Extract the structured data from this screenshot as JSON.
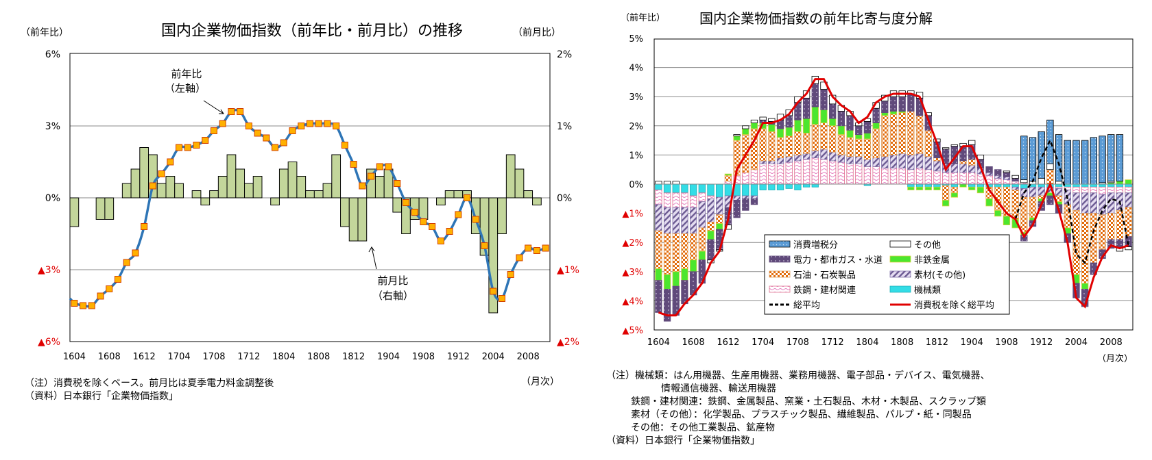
{
  "chart_data": [
    {
      "type": "bar+line",
      "title": "国内企業物価指数（前年比・前月比）の推移",
      "ylabel_left": "（前年比）",
      "ylabel_right": "（前月比）",
      "xlabel": "（月次）",
      "y_left_ticks": [
        "6%",
        "3%",
        "0%",
        "▲3%",
        "▲6%"
      ],
      "y_right_ticks": [
        "2%",
        "1%",
        "0%",
        "▲1%",
        "▲2%"
      ],
      "ylim_left": [
        -6,
        6
      ],
      "ylim_right": [
        -2,
        2
      ],
      "grid": true,
      "x_ticks": [
        "1604",
        "1608",
        "1612",
        "1704",
        "1708",
        "1712",
        "1804",
        "1808",
        "1812",
        "1904",
        "1908",
        "1912",
        "2004",
        "2008"
      ],
      "categories": [
        "1604",
        "1605",
        "1606",
        "1607",
        "1608",
        "1609",
        "1610",
        "1611",
        "1612",
        "1701",
        "1702",
        "1703",
        "1704",
        "1705",
        "1706",
        "1707",
        "1708",
        "1709",
        "1710",
        "1711",
        "1712",
        "1801",
        "1802",
        "1803",
        "1804",
        "1805",
        "1806",
        "1807",
        "1808",
        "1809",
        "1810",
        "1811",
        "1812",
        "1901",
        "1902",
        "1903",
        "1904",
        "1905",
        "1906",
        "1907",
        "1908",
        "1909",
        "1910",
        "1911",
        "1912",
        "2001",
        "2002",
        "2003",
        "2004",
        "2005",
        "2006",
        "2007",
        "2008",
        "2009",
        "2010"
      ],
      "series": [
        {
          "name": "前年比（左軸）",
          "type": "line",
          "axis": "left",
          "color": "#2e75b6",
          "marker_color": "#ffb000",
          "values": [
            -4.4,
            -4.5,
            -4.5,
            -4.1,
            -3.8,
            -3.4,
            -2.7,
            -2.3,
            -1.2,
            0.5,
            1.0,
            1.5,
            2.1,
            2.1,
            2.2,
            2.4,
            2.8,
            3.1,
            3.6,
            3.6,
            3.0,
            2.7,
            2.5,
            2.1,
            2.3,
            2.8,
            3.0,
            3.1,
            3.1,
            3.1,
            3.0,
            2.2,
            1.4,
            0.5,
            0.9,
            1.3,
            1.3,
            0.6,
            -0.2,
            -0.6,
            -1.0,
            -1.2,
            -1.8,
            -1.4,
            -0.7,
            0.0,
            -0.9,
            -2.0,
            -3.9,
            -4.2,
            -3.2,
            -2.5,
            -2.1,
            -2.2,
            -2.1
          ]
        },
        {
          "name": "前月比（右軸）",
          "type": "bar",
          "axis": "right",
          "color": "#c3d69b",
          "values": [
            -0.4,
            0,
            0,
            -0.3,
            -0.3,
            0,
            0.2,
            0.4,
            0.7,
            0.6,
            0.2,
            0.3,
            0.2,
            0,
            0.1,
            -0.1,
            0.1,
            0.3,
            0.6,
            0.4,
            0.2,
            0.3,
            0,
            -0.1,
            0.4,
            0.5,
            0.3,
            0.1,
            0.1,
            0.2,
            0.6,
            -0.4,
            -0.6,
            -0.6,
            0.4,
            0.3,
            0.4,
            -0.2,
            -0.5,
            -0.3,
            -0.3,
            0,
            -0.1,
            0.1,
            0.1,
            0.1,
            -0.5,
            -0.8,
            -1.6,
            -0.5,
            0.6,
            0.4,
            0.1,
            -0.1,
            0
          ]
        }
      ],
      "annotations": [
        {
          "line1": "前年比",
          "line2": "（左軸）"
        },
        {
          "line1": "前月比",
          "line2": "（右軸）"
        }
      ],
      "notes": [
        "（注）消費税を除くベース。前月比は夏季電力料金調整後",
        "（資料）日本銀行「企業物価指数」"
      ]
    },
    {
      "type": "stacked-bar+line",
      "title": "国内企業物価指数の前年比寄与度分解",
      "ylabel": "（前年比）",
      "xlabel": "（月次）",
      "y_ticks": [
        "5%",
        "4%",
        "3%",
        "2%",
        "1%",
        "0%",
        "▲1%",
        "▲2%",
        "▲3%",
        "▲4%",
        "▲5%"
      ],
      "ylim": [
        -5,
        5
      ],
      "grid": true,
      "legend_placement": "bottom-center (inside)",
      "x_ticks": [
        "1604",
        "1608",
        "1612",
        "1704",
        "1708",
        "1712",
        "1804",
        "1808",
        "1812",
        "1904",
        "1908",
        "1912",
        "2004",
        "2008"
      ],
      "categories": [
        "1604",
        "1605",
        "1606",
        "1607",
        "1608",
        "1609",
        "1610",
        "1611",
        "1612",
        "1701",
        "1702",
        "1703",
        "1704",
        "1705",
        "1706",
        "1707",
        "1708",
        "1709",
        "1710",
        "1711",
        "1712",
        "1801",
        "1802",
        "1803",
        "1804",
        "1805",
        "1806",
        "1807",
        "1808",
        "1809",
        "1810",
        "1811",
        "1812",
        "1901",
        "1902",
        "1903",
        "1904",
        "1905",
        "1906",
        "1907",
        "1908",
        "1909",
        "1910",
        "1911",
        "1912",
        "2001",
        "2002",
        "2003",
        "2004",
        "2005",
        "2006",
        "2007",
        "2008",
        "2009",
        "2010"
      ],
      "series": [
        {
          "key": "mach",
          "name": "機械類",
          "color": "#33dde6",
          "values": [
            -0.2,
            -0.3,
            -0.3,
            -0.3,
            -0.4,
            -0.3,
            -0.4,
            -0.45,
            -0.4,
            -0.4,
            -0.4,
            -0.4,
            -0.2,
            -0.2,
            -0.2,
            -0.15,
            -0.2,
            -0.1,
            -0.1,
            0,
            0,
            0,
            0,
            0,
            -0.05,
            0,
            0,
            0,
            0,
            -0.1,
            -0.1,
            -0.1,
            -0.1,
            -0.05,
            -0.1,
            0,
            -0.1,
            -0.1,
            -0.1,
            -0.1,
            -0.1,
            -0.1,
            -0.15,
            -0.1,
            -0.1,
            -0.1,
            -0.1,
            -0.1,
            -0.1,
            -0.1,
            -0.1,
            -0.1,
            -0.1,
            -0.1,
            -0.1
          ]
        },
        {
          "key": "steel",
          "name": "鉄鋼・建材関連",
          "color": "#f4a6d0",
          "values": [
            -0.5,
            -0.5,
            -0.5,
            -0.5,
            -0.4,
            -0.3,
            -0.1,
            0,
            0.1,
            0.3,
            0.4,
            0.5,
            0.7,
            0.7,
            0.7,
            0.75,
            0.8,
            0.85,
            0.9,
            0.85,
            0.8,
            0.75,
            0.7,
            0.7,
            0.6,
            0.6,
            0.55,
            0.55,
            0.55,
            0.5,
            0.55,
            0.5,
            0.45,
            0.4,
            0.4,
            0.4,
            0.4,
            0.35,
            0.3,
            0.2,
            0.15,
            0.1,
            0.05,
            0,
            0,
            0,
            -0.05,
            -0.1,
            -0.2,
            -0.2,
            -0.2,
            -0.25,
            -0.2,
            -0.2,
            -0.2
          ]
        },
        {
          "key": "mat",
          "name": "素材(その他)",
          "color": "#b3a2c7",
          "values": [
            -0.9,
            -0.9,
            -0.9,
            -0.9,
            -0.9,
            -0.9,
            -0.8,
            -0.6,
            -0.4,
            -0.15,
            -0.1,
            -0.1,
            0.1,
            0.1,
            0.2,
            0.2,
            0.2,
            0.2,
            0.25,
            0.35,
            0.3,
            0.25,
            0.25,
            0.25,
            0.25,
            0.3,
            0.4,
            0.45,
            0.5,
            0.5,
            0.5,
            0.45,
            0.35,
            0.3,
            0.3,
            0.3,
            0.25,
            0.2,
            0.1,
            0.1,
            0.1,
            -0.1,
            -0.3,
            -0.35,
            -0.3,
            -0.2,
            -0.25,
            -0.5,
            -0.6,
            -0.7,
            -0.7,
            -0.7,
            -0.7,
            -0.6,
            -0.5
          ]
        },
        {
          "key": "pet",
          "name": "石油・石炭製品",
          "color": "#e26b0a",
          "values": [
            -1.3,
            -1.4,
            -1.3,
            -1.2,
            -0.9,
            -0.8,
            -0.3,
            -0.3,
            0.2,
            1.2,
            1.3,
            1.4,
            1.1,
            1.0,
            0.7,
            0.7,
            0.8,
            0.7,
            0.9,
            0.9,
            0.9,
            0.7,
            0.65,
            0.6,
            0.7,
            1.0,
            1.4,
            1.4,
            1.4,
            1.5,
            1.3,
            0.9,
            0.1,
            -0.5,
            -0.2,
            0.1,
            0.2,
            0,
            -0.4,
            -0.8,
            -1.0,
            -1.0,
            -1.2,
            -0.7,
            -0.1,
            0.5,
            -0.2,
            -0.8,
            -2.2,
            -2.4,
            -1.7,
            -1.2,
            -0.9,
            -1.0,
            -1.0
          ]
        },
        {
          "key": "nonf",
          "name": "非鉄金属",
          "color": "#4ce62e",
          "values": [
            -0.4,
            -0.5,
            -0.5,
            -0.4,
            -0.4,
            -0.3,
            -0.3,
            -0.2,
            0.05,
            0.15,
            0.2,
            0.2,
            0.2,
            0.25,
            0.3,
            0.3,
            0.4,
            0.5,
            0.6,
            0.45,
            0.25,
            0.3,
            0.25,
            0.15,
            0.2,
            0.2,
            0.1,
            0.1,
            0.05,
            -0.1,
            -0.1,
            -0.1,
            -0.1,
            -0.2,
            -0.15,
            -0.1,
            -0.1,
            -0.2,
            -0.25,
            -0.2,
            -0.3,
            -0.3,
            -0.1,
            -0.1,
            -0.1,
            -0.1,
            -0.1,
            -0.2,
            -0.3,
            -0.2,
            0,
            0,
            0.05,
            0.1,
            0.15
          ]
        },
        {
          "key": "elec",
          "name": "電力・都市ガス・水道",
          "color": "#604a7b",
          "values": [
            -1.1,
            -1.1,
            -1.0,
            -0.8,
            -0.8,
            -0.8,
            -0.7,
            -0.7,
            -0.6,
            -0.6,
            -0.4,
            -0.2,
            0.1,
            0.1,
            0.3,
            0.4,
            0.6,
            0.7,
            0.8,
            0.7,
            0.5,
            0.5,
            0.5,
            0.3,
            0.4,
            0.5,
            0.4,
            0.5,
            0.5,
            0.6,
            0.6,
            0.5,
            0.55,
            0.5,
            0.6,
            0.5,
            0.5,
            0.3,
            0.2,
            0.2,
            0.15,
            0.1,
            -0.2,
            -0.2,
            -0.3,
            -0.3,
            -0.3,
            -0.3,
            -0.5,
            -0.6,
            -0.4,
            -0.3,
            -0.3,
            -0.3,
            -0.35
          ]
        },
        {
          "key": "other",
          "name": "その他",
          "color": "#ffffff",
          "values": [
            0.1,
            0.1,
            0.1,
            0,
            0,
            0,
            -0.1,
            -0.05,
            -0.15,
            0.05,
            0.1,
            0.1,
            0.1,
            0.1,
            0.2,
            0.2,
            0.2,
            0.25,
            0.25,
            0.25,
            0.3,
            0.2,
            0.15,
            0.1,
            0.1,
            0.2,
            0.2,
            0.2,
            0.2,
            0.1,
            0.2,
            0.1,
            0.1,
            0.05,
            0.05,
            0.1,
            0.15,
            0.15,
            0,
            0,
            0.05,
            0.1,
            0.1,
            0.1,
            0.2,
            0.2,
            0.1,
            0,
            0,
            0,
            0,
            0.05,
            0.05,
            -0.1,
            -0.1
          ]
        },
        {
          "key": "tax",
          "name": "消費増税分",
          "color": "#5b9bd5",
          "values": [
            0,
            0,
            0,
            0,
            0,
            0,
            0,
            0,
            0,
            0,
            0,
            0,
            0,
            0,
            0,
            0,
            0,
            0,
            0,
            0,
            0,
            0,
            0,
            0,
            0,
            0,
            0,
            0,
            0,
            0,
            0,
            0,
            0,
            0,
            0,
            0,
            0,
            0,
            0,
            0,
            0,
            0,
            1.5,
            1.5,
            1.6,
            1.5,
            1.6,
            1.5,
            1.5,
            1.5,
            1.6,
            1.6,
            1.6,
            1.6,
            0
          ]
        }
      ],
      "lines": [
        {
          "key": "total",
          "name": "総平均",
          "color": "#000000",
          "style": "dashed",
          "values": [
            null,
            null,
            null,
            null,
            null,
            null,
            null,
            null,
            null,
            null,
            null,
            null,
            null,
            null,
            null,
            null,
            null,
            null,
            null,
            null,
            null,
            null,
            null,
            null,
            null,
            null,
            null,
            null,
            null,
            null,
            null,
            null,
            null,
            null,
            null,
            null,
            null,
            null,
            null,
            null,
            null,
            -1.2,
            -0.3,
            0.1,
            0.9,
            1.5,
            0.7,
            -0.5,
            -2.4,
            -2.7,
            -1.6,
            -0.9,
            -0.5,
            -0.6,
            -2.1
          ]
        },
        {
          "key": "extax",
          "name": "消費税を除く総平均",
          "color": "#e00000",
          "style": "solid",
          "values": [
            -4.4,
            -4.5,
            -4.5,
            -4.1,
            -3.8,
            -3.4,
            -2.7,
            -2.3,
            -1.2,
            0.5,
            1.0,
            1.5,
            2.1,
            2.1,
            2.2,
            2.4,
            2.8,
            3.1,
            3.6,
            3.6,
            3.0,
            2.7,
            2.5,
            2.1,
            2.3,
            2.8,
            3.0,
            3.1,
            3.1,
            3.1,
            3.0,
            2.2,
            1.4,
            0.5,
            0.9,
            1.3,
            1.3,
            0.6,
            -0.2,
            -0.6,
            -1.0,
            -1.2,
            -1.8,
            -1.4,
            -0.7,
            0.0,
            -0.9,
            -2.0,
            -3.9,
            -4.2,
            -3.2,
            -2.5,
            -2.1,
            -2.2,
            -2.1
          ]
        }
      ],
      "legend_order": [
        "tax",
        "other",
        "elec",
        "nonf",
        "pet",
        "mat",
        "steel",
        "mach",
        "total",
        "extax"
      ],
      "notes": [
        "（注）機械類：はん用機器、生産用機器、業務用機器、電子部品・デバイス、電気機器、",
        "情報通信機器、輸送用機器",
        "鉄鋼・建材関連：鉄鋼、金属製品、窯業・土石製品、木材・木製品、スクラップ類",
        "素材（その他）：化学製品、プラスチック製品、繊維製品、パルプ・紙・同製品",
        "その他：その他工業製品、鉱産物",
        "（資料）日本銀行「企業物価指数」"
      ]
    }
  ]
}
